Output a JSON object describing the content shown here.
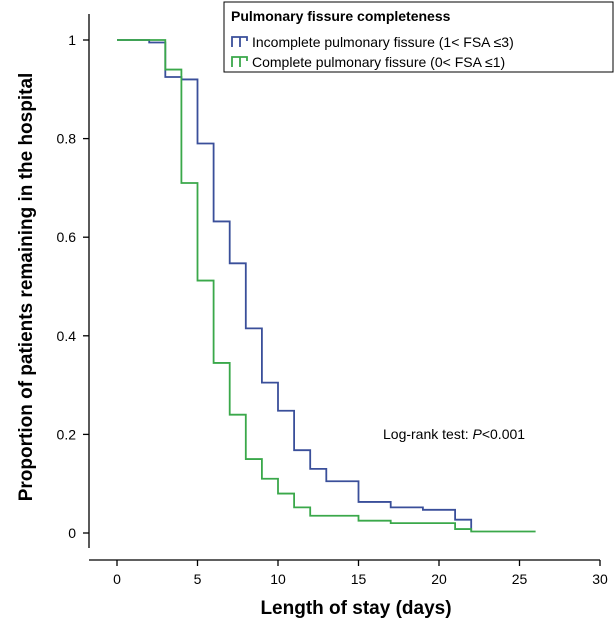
{
  "chart_data": {
    "type": "line",
    "step": true,
    "xlabel": "Length of stay (days)",
    "ylabel": "Proportion of patients remaining in the hospital",
    "xlim": [
      0,
      30
    ],
    "ylim": [
      0,
      1
    ],
    "xticks": [
      0,
      5,
      10,
      15,
      20,
      25,
      30
    ],
    "xtick_labels": [
      "0",
      "5",
      "10",
      "15",
      "20",
      "25",
      "30"
    ],
    "yticks": [
      0,
      0.2,
      0.4,
      0.6,
      0.8,
      1
    ],
    "ytick_labels": [
      "0",
      "0.2",
      "0.4",
      "0.6",
      "0.8",
      "1"
    ],
    "grid": false,
    "legend": {
      "title": "Pulmonary fissure completeness",
      "position": "top-right"
    },
    "annotation_prefix": "Log-rank test: ",
    "annotation_p": "P",
    "annotation_value": "<0.001",
    "series": [
      {
        "name": "Incomplete pulmonary fissure (1< FSA ≤3)",
        "color": "#3a4f9a",
        "x": [
          0,
          2,
          3,
          4,
          5,
          6,
          7,
          8,
          9,
          10,
          11,
          12,
          13,
          15,
          17,
          19,
          21,
          22
        ],
        "y": [
          1,
          0.995,
          0.925,
          0.92,
          0.79,
          0.632,
          0.547,
          0.415,
          0.305,
          0.248,
          0.168,
          0.13,
          0.105,
          0.063,
          0.052,
          0.047,
          0.027,
          0.005
        ]
      },
      {
        "name": "Complete pulmonary fissure (0< FSA ≤1)",
        "color": "#3aa84a",
        "x": [
          0,
          3,
          4,
          5,
          6,
          7,
          8,
          9,
          10,
          11,
          12,
          15,
          17,
          21,
          22,
          26
        ],
        "y": [
          1,
          0.94,
          0.71,
          0.512,
          0.345,
          0.24,
          0.15,
          0.11,
          0.08,
          0.052,
          0.035,
          0.025,
          0.02,
          0.008,
          0.003,
          0.003
        ]
      }
    ]
  }
}
